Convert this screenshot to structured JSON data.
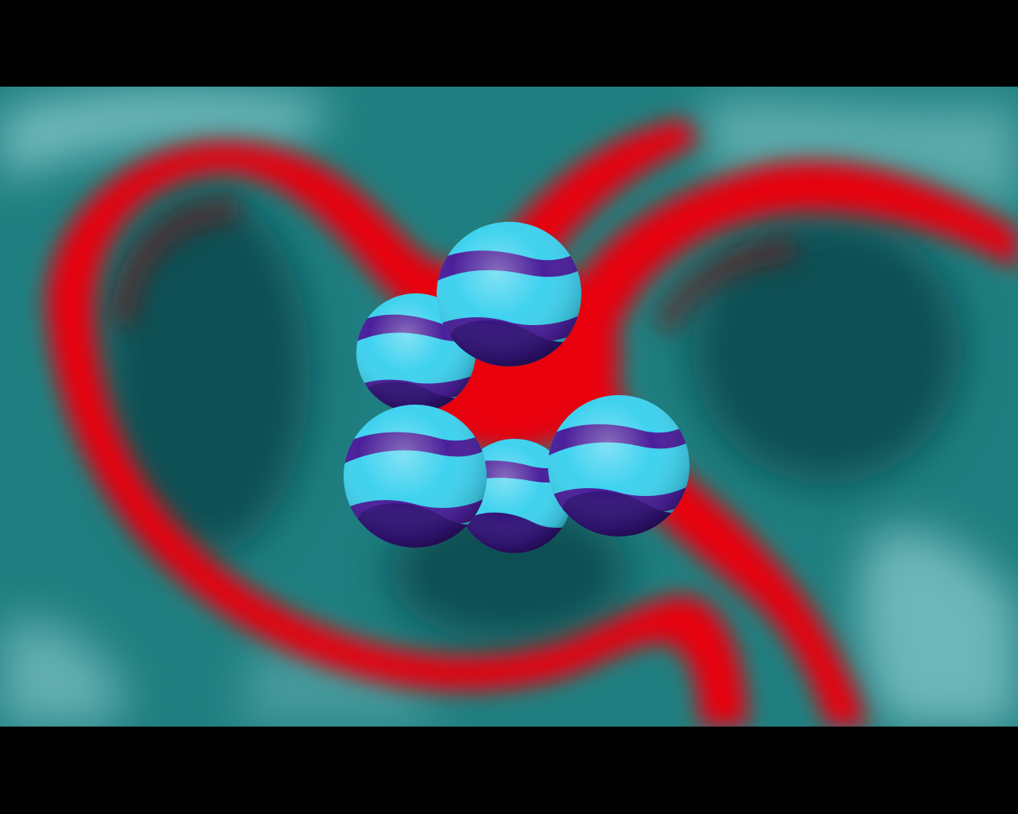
{
  "screen": {
    "description_kind": "fullscreen-3d-render",
    "letterbox_color": "#000000"
  },
  "scene": {
    "background": {
      "pattern": "marbled-wave",
      "colors": {
        "teal_dark": "#0b4f52",
        "teal_mid": "#1f7f80",
        "teal_light": "#8fcfd0",
        "red": "#e80408",
        "red_dark": "#7a0a10"
      }
    },
    "spheres": {
      "count": 5,
      "colors": {
        "cyan": "#3fd2ef",
        "cyan_light": "#7ee8f7",
        "purple": "#4a1f9a",
        "purple_dark": "#33147a"
      },
      "items": [
        {
          "name": "sphere-top"
        },
        {
          "name": "sphere-upper-left"
        },
        {
          "name": "sphere-lower-left"
        },
        {
          "name": "sphere-bottom-center"
        },
        {
          "name": "sphere-right"
        }
      ]
    }
  }
}
